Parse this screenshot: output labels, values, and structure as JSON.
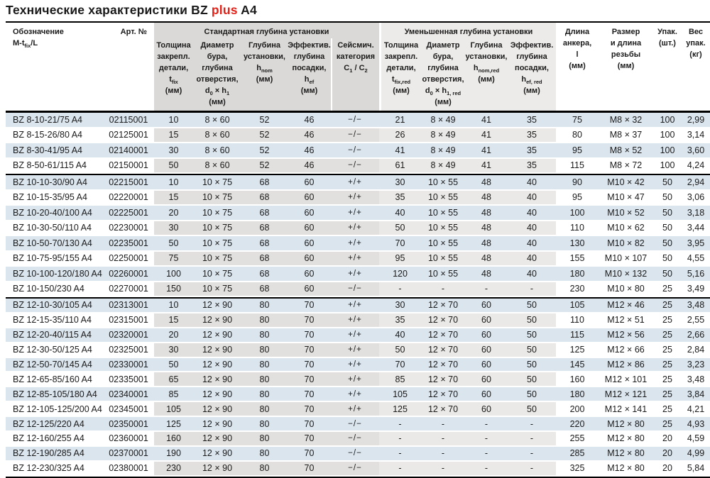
{
  "title": {
    "main": "Технические характеристики BZ ",
    "highlight": "plus",
    "suffix": " A4"
  },
  "colors": {
    "accent_red": "#e2231a",
    "row_blue": "#dbe5ee",
    "section_gray_standard": "#e2e0de",
    "section_gray_reduced": "#ebe9e7",
    "border_black": "#000000"
  },
  "table": {
    "group_headers": [
      {
        "label": "Стандартная глубина установки"
      },
      {
        "label": "Уменьшенная глубина установки"
      }
    ],
    "columns": [
      {
        "name": "designation",
        "html": "Обозначение<br>M-t<sub>fix</sub>/L"
      },
      {
        "name": "article-number",
        "html": "Арт. №"
      },
      {
        "name": "tfix",
        "html": "Толщина<br>закрепл.<br>детали,<br>t<sub>fix</sub><br>(мм)"
      },
      {
        "name": "d0xh1",
        "html": "Диаметр<br>бура,<br>глубина<br>отверстия,<br>d<sub>0</sub> × h<sub>1</sub><br>(мм)"
      },
      {
        "name": "hnom",
        "html": "Глубина<br>установки,<br>h<sub>nom</sub><br>(мм)"
      },
      {
        "name": "hef",
        "html": "Эффектив.<br>глубина<br>посадки,<br>h<sub>ef</sub><br>(мм)"
      },
      {
        "name": "seismic-category",
        "html": "Сейсмич.<br>категория<br>C<sub>1</sub> / C<sub>2</sub>"
      },
      {
        "name": "tfix-red",
        "html": "Толщина<br>закрепл.<br>детали,<br>t<sub>fix,red</sub><br>(мм)"
      },
      {
        "name": "d0xh1-red",
        "html": "Диаметр<br>бура,<br>глубина<br>отверстия,<br>d<sub>0</sub> × h<sub>1, red</sub><br>(мм)"
      },
      {
        "name": "hnom-red",
        "html": "Глубина<br>установки,<br>h<sub>nom,red</sub><br>(мм)"
      },
      {
        "name": "hef-red",
        "html": "Эффектив.<br>глубина<br>посадки,<br>h<sub>ef, red</sub><br>(мм)"
      },
      {
        "name": "anchor-length",
        "html": "Длина<br>анкера,<br>l<br>(мм)"
      },
      {
        "name": "thread-size",
        "html": "Размер<br>и длина<br>резьбы<br>(мм)"
      },
      {
        "name": "pack-qty",
        "html": "Упак.<br>(шт.)"
      },
      {
        "name": "pack-weight",
        "html": "Вес<br>упак.<br>(кг)"
      }
    ],
    "cell_names": [
      "cell-designation",
      "cell-art-no",
      "cell-tfix",
      "cell-d0xh1",
      "cell-hnom",
      "cell-hef",
      "cell-seismic",
      "cell-tfix-red",
      "cell-d0xh1-red",
      "cell-hnom-red",
      "cell-hef-red",
      "cell-anchor-length",
      "cell-thread-size",
      "cell-pack-qty",
      "cell-pack-weight"
    ],
    "sections": [
      {
        "id": "bz8",
        "rows": [
          [
            "BZ 8-10-21/75 A4",
            "02115001",
            "10",
            "8 × 60",
            "52",
            "46",
            "−/−",
            "21",
            "8 × 49",
            "41",
            "35",
            "75",
            "M8 × 32",
            "100",
            "2,99"
          ],
          [
            "BZ 8-15-26/80 A4",
            "02125001",
            "15",
            "8 × 60",
            "52",
            "46",
            "−/−",
            "26",
            "8 × 49",
            "41",
            "35",
            "80",
            "M8 × 37",
            "100",
            "3,14"
          ],
          [
            "BZ 8-30-41/95 A4",
            "02140001",
            "30",
            "8 × 60",
            "52",
            "46",
            "−/−",
            "41",
            "8 × 49",
            "41",
            "35",
            "95",
            "M8 × 52",
            "100",
            "3,60"
          ],
          [
            "BZ 8-50-61/115 A4",
            "02150001",
            "50",
            "8 × 60",
            "52",
            "46",
            "−/−",
            "61",
            "8 × 49",
            "41",
            "35",
            "115",
            "M8 × 72",
            "100",
            "4,24"
          ]
        ]
      },
      {
        "id": "bz10",
        "rows": [
          [
            "BZ 10-10-30/90 A4",
            "02215001",
            "10",
            "10 × 75",
            "68",
            "60",
            "+/+",
            "30",
            "10 × 55",
            "48",
            "40",
            "90",
            "M10 × 42",
            "50",
            "2,94"
          ],
          [
            "BZ 10-15-35/95 A4",
            "02220001",
            "15",
            "10 × 75",
            "68",
            "60",
            "+/+",
            "35",
            "10 × 55",
            "48",
            "40",
            "95",
            "M10 × 47",
            "50",
            "3,06"
          ],
          [
            "BZ 10-20-40/100 A4",
            "02225001",
            "20",
            "10 × 75",
            "68",
            "60",
            "+/+",
            "40",
            "10 × 55",
            "48",
            "40",
            "100",
            "M10 × 52",
            "50",
            "3,18"
          ],
          [
            "BZ 10-30-50/110 A4",
            "02230001",
            "30",
            "10 × 75",
            "68",
            "60",
            "+/+",
            "50",
            "10 × 55",
            "48",
            "40",
            "110",
            "M10 × 62",
            "50",
            "3,44"
          ],
          [
            "BZ 10-50-70/130 A4",
            "02235001",
            "50",
            "10 × 75",
            "68",
            "60",
            "+/+",
            "70",
            "10 × 55",
            "48",
            "40",
            "130",
            "M10 × 82",
            "50",
            "3,95"
          ],
          [
            "BZ 10-75-95/155 A4",
            "02250001",
            "75",
            "10 × 75",
            "68",
            "60",
            "+/+",
            "95",
            "10 × 55",
            "48",
            "40",
            "155",
            "M10 × 107",
            "50",
            "4,55"
          ],
          [
            "BZ 10-100-120/180 A4",
            "02260001",
            "100",
            "10 × 75",
            "68",
            "60",
            "+/+",
            "120",
            "10 × 55",
            "48",
            "40",
            "180",
            "M10 × 132",
            "50",
            "5,16"
          ],
          [
            "BZ 10-150/230 A4",
            "02270001",
            "150",
            "10 × 75",
            "68",
            "60",
            "−/−",
            "-",
            "-",
            "-",
            "-",
            "230",
            "M10 × 80",
            "25",
            "3,49"
          ]
        ]
      },
      {
        "id": "bz12",
        "rows": [
          [
            "BZ 12-10-30/105 A4",
            "02313001",
            "10",
            "12 × 90",
            "80",
            "70",
            "+/+",
            "30",
            "12 × 70",
            "60",
            "50",
            "105",
            "M12 × 46",
            "25",
            "3,48"
          ],
          [
            "BZ 12-15-35/110 A4",
            "02315001",
            "15",
            "12 × 90",
            "80",
            "70",
            "+/+",
            "35",
            "12 × 70",
            "60",
            "50",
            "110",
            "M12 × 51",
            "25",
            "2,55"
          ],
          [
            "BZ 12-20-40/115 A4",
            "02320001",
            "20",
            "12 × 90",
            "80",
            "70",
            "+/+",
            "40",
            "12 × 70",
            "60",
            "50",
            "115",
            "M12 × 56",
            "25",
            "2,66"
          ],
          [
            "BZ 12-30-50/125 A4",
            "02325001",
            "30",
            "12 × 90",
            "80",
            "70",
            "+/+",
            "50",
            "12 × 70",
            "60",
            "50",
            "125",
            "M12 × 66",
            "25",
            "2,84"
          ],
          [
            "BZ 12-50-70/145 A4",
            "02330001",
            "50",
            "12 × 90",
            "80",
            "70",
            "+/+",
            "70",
            "12 × 70",
            "60",
            "50",
            "145",
            "M12 × 86",
            "25",
            "3,23"
          ],
          [
            "BZ 12-65-85/160 A4",
            "02335001",
            "65",
            "12 × 90",
            "80",
            "70",
            "+/+",
            "85",
            "12 × 70",
            "60",
            "50",
            "160",
            "M12 × 101",
            "25",
            "3,48"
          ],
          [
            "BZ 12-85-105/180 A4",
            "02340001",
            "85",
            "12 × 90",
            "80",
            "70",
            "+/+",
            "105",
            "12 × 70",
            "60",
            "50",
            "180",
            "M12 × 121",
            "25",
            "3,84"
          ],
          [
            "BZ 12-105-125/200 A4",
            "02345001",
            "105",
            "12 × 90",
            "80",
            "70",
            "+/+",
            "125",
            "12 × 70",
            "60",
            "50",
            "200",
            "M12 × 141",
            "25",
            "4,21"
          ],
          [
            "BZ 12-125/220 A4",
            "02350001",
            "125",
            "12 × 90",
            "80",
            "70",
            "−/−",
            "-",
            "-",
            "-",
            "-",
            "220",
            "M12 × 80",
            "25",
            "4,93"
          ],
          [
            "BZ 12-160/255 A4",
            "02360001",
            "160",
            "12 × 90",
            "80",
            "70",
            "−/−",
            "-",
            "-",
            "-",
            "-",
            "255",
            "M12 × 80",
            "20",
            "4,59"
          ],
          [
            "BZ 12-190/285 A4",
            "02370001",
            "190",
            "12 × 90",
            "80",
            "70",
            "−/−",
            "-",
            "-",
            "-",
            "-",
            "285",
            "M12 × 80",
            "20",
            "4,99"
          ],
          [
            "BZ 12-230/325 A4",
            "02380001",
            "230",
            "12 × 90",
            "80",
            "70",
            "−/−",
            "-",
            "-",
            "-",
            "-",
            "325",
            "M12 × 80",
            "20",
            "5,84"
          ]
        ]
      }
    ]
  }
}
